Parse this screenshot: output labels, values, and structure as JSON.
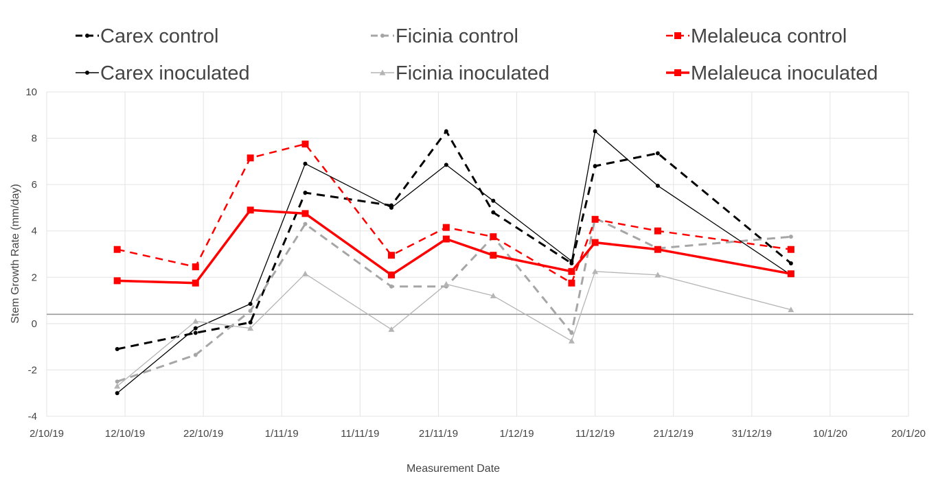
{
  "chart_data": {
    "type": "line",
    "title": "",
    "xlabel": "Measurement Date",
    "ylabel": "Stem Growth Rate (mm/day)",
    "x_axis_type": "date",
    "x_tick_labels": [
      "2/10/19",
      "12/10/19",
      "22/10/19",
      "1/11/19",
      "11/11/19",
      "21/11/19",
      "1/12/19",
      "11/12/19",
      "21/12/19",
      "31/12/19",
      "10/1/20",
      "20/1/20"
    ],
    "x_ticks": [
      "2019-10-02",
      "2019-10-12",
      "2019-10-22",
      "2019-11-01",
      "2019-11-11",
      "2019-11-21",
      "2019-12-01",
      "2019-12-11",
      "2019-12-21",
      "2019-12-31",
      "2020-01-10",
      "2020-01-20"
    ],
    "xlim": [
      "2019-10-02",
      "2020-01-20"
    ],
    "y_tick_labels": [
      "-4",
      "-2",
      "0",
      "2",
      "4",
      "6",
      "8",
      "10"
    ],
    "y_ticks": [
      -4,
      -2,
      0,
      2,
      4,
      6,
      8,
      10
    ],
    "ylim": [
      -4,
      10
    ],
    "grid": true,
    "reference_line_y": 0.4,
    "legend_position": "top",
    "series": [
      {
        "name": "Carex control",
        "color": "#000000",
        "dash": "dashed",
        "marker": "dot",
        "width": 3,
        "points": [
          {
            "x": "2019-10-11",
            "y": -1.1
          },
          {
            "x": "2019-10-21",
            "y": -0.4
          },
          {
            "x": "2019-10-28",
            "y": 0.05
          },
          {
            "x": "2019-11-04",
            "y": 5.65
          },
          {
            "x": "2019-11-15",
            "y": 5.1
          },
          {
            "x": "2019-11-22",
            "y": 8.3
          },
          {
            "x": "2019-11-28",
            "y": 4.8
          },
          {
            "x": "2019-12-08",
            "y": 2.6
          },
          {
            "x": "2019-12-11",
            "y": 6.8
          },
          {
            "x": "2019-12-19",
            "y": 7.35
          },
          {
            "x": "2020-01-05",
            "y": 2.6
          }
        ]
      },
      {
        "name": "Ficinia control",
        "color": "#a6a6a6",
        "dash": "dashed",
        "marker": "dot",
        "width": 3,
        "points": [
          {
            "x": "2019-10-11",
            "y": -2.5
          },
          {
            "x": "2019-10-21",
            "y": -1.35
          },
          {
            "x": "2019-10-28",
            "y": 0.55
          },
          {
            "x": "2019-11-04",
            "y": 4.3
          },
          {
            "x": "2019-11-15",
            "y": 1.6
          },
          {
            "x": "2019-11-22",
            "y": 1.6
          },
          {
            "x": "2019-11-28",
            "y": 3.75
          },
          {
            "x": "2019-12-08",
            "y": -0.4
          },
          {
            "x": "2019-12-11",
            "y": 4.55
          },
          {
            "x": "2019-12-19",
            "y": 3.25
          },
          {
            "x": "2020-01-05",
            "y": 3.75
          }
        ]
      },
      {
        "name": "Melaleuca control",
        "color": "#ff0000",
        "dash": "dashed",
        "marker": "square",
        "width": 2.5,
        "points": [
          {
            "x": "2019-10-11",
            "y": 3.2
          },
          {
            "x": "2019-10-21",
            "y": 2.45
          },
          {
            "x": "2019-10-28",
            "y": 7.15
          },
          {
            "x": "2019-11-04",
            "y": 7.75
          },
          {
            "x": "2019-11-15",
            "y": 2.95
          },
          {
            "x": "2019-11-22",
            "y": 4.15
          },
          {
            "x": "2019-11-28",
            "y": 3.75
          },
          {
            "x": "2019-12-08",
            "y": 1.75
          },
          {
            "x": "2019-12-11",
            "y": 4.5
          },
          {
            "x": "2019-12-19",
            "y": 4.0
          },
          {
            "x": "2020-01-05",
            "y": 3.2
          }
        ]
      },
      {
        "name": "Carex inoculated",
        "color": "#000000",
        "dash": "solid",
        "marker": "dot",
        "width": 1.3,
        "points": [
          {
            "x": "2019-10-11",
            "y": -3.0
          },
          {
            "x": "2019-10-21",
            "y": -0.2
          },
          {
            "x": "2019-10-28",
            "y": 0.85
          },
          {
            "x": "2019-11-04",
            "y": 6.9
          },
          {
            "x": "2019-11-15",
            "y": 5.0
          },
          {
            "x": "2019-11-22",
            "y": 6.85
          },
          {
            "x": "2019-11-28",
            "y": 5.3
          },
          {
            "x": "2019-12-08",
            "y": 2.7
          },
          {
            "x": "2019-12-11",
            "y": 8.3
          },
          {
            "x": "2019-12-19",
            "y": 5.95
          },
          {
            "x": "2020-01-05",
            "y": 2.1
          }
        ]
      },
      {
        "name": "Ficinia inoculated",
        "color": "#b4b4b4",
        "dash": "solid",
        "marker": "triangle",
        "width": 1.3,
        "points": [
          {
            "x": "2019-10-11",
            "y": -2.7
          },
          {
            "x": "2019-10-21",
            "y": 0.1
          },
          {
            "x": "2019-10-28",
            "y": -0.2
          },
          {
            "x": "2019-11-04",
            "y": 2.15
          },
          {
            "x": "2019-11-15",
            "y": -0.25
          },
          {
            "x": "2019-11-22",
            "y": 1.7
          },
          {
            "x": "2019-11-28",
            "y": 1.2
          },
          {
            "x": "2019-12-08",
            "y": -0.75
          },
          {
            "x": "2019-12-11",
            "y": 2.25
          },
          {
            "x": "2019-12-19",
            "y": 2.1
          },
          {
            "x": "2020-01-05",
            "y": 0.6
          }
        ]
      },
      {
        "name": "Melaleuca inoculated",
        "color": "#ff0000",
        "dash": "solid",
        "marker": "square",
        "width": 3.5,
        "points": [
          {
            "x": "2019-10-11",
            "y": 1.85
          },
          {
            "x": "2019-10-21",
            "y": 1.75
          },
          {
            "x": "2019-10-28",
            "y": 4.9
          },
          {
            "x": "2019-11-04",
            "y": 4.75
          },
          {
            "x": "2019-11-15",
            "y": 2.1
          },
          {
            "x": "2019-11-22",
            "y": 3.65
          },
          {
            "x": "2019-11-28",
            "y": 2.95
          },
          {
            "x": "2019-12-08",
            "y": 2.25
          },
          {
            "x": "2019-12-11",
            "y": 3.5
          },
          {
            "x": "2019-12-19",
            "y": 3.2
          },
          {
            "x": "2020-01-05",
            "y": 2.15
          }
        ]
      }
    ]
  }
}
